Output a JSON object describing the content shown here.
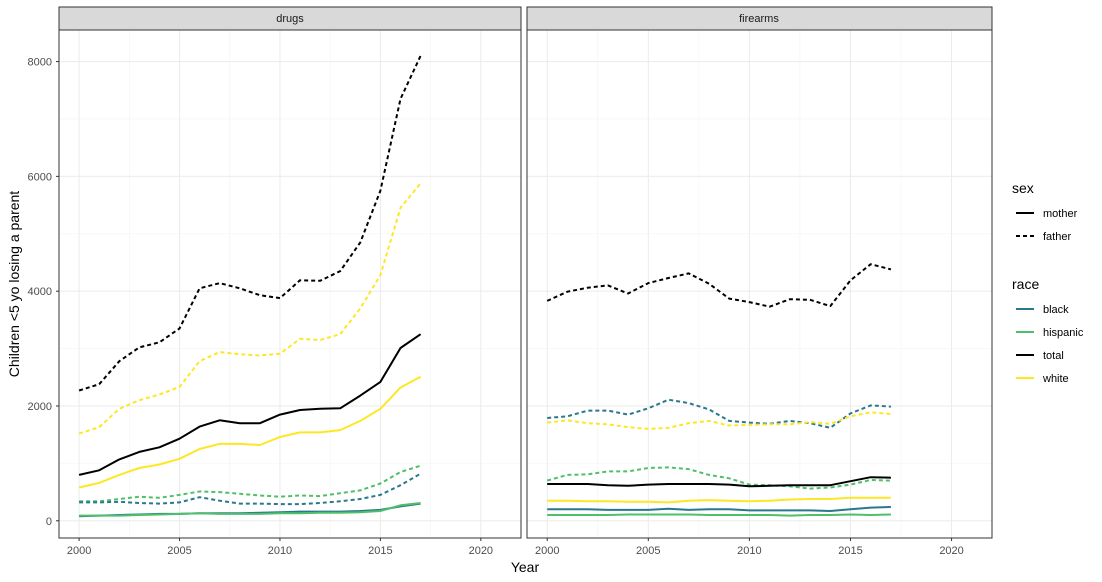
{
  "chart_data": {
    "type": "line",
    "facets": [
      "drugs",
      "firearms"
    ],
    "xlabel": "Year",
    "ylabel": "Children <5 yo losing a parent",
    "xlim": [
      1999,
      2022
    ],
    "ylim": [
      -300,
      8550
    ],
    "x_ticks": [
      2000,
      2005,
      2010,
      2015,
      2020
    ],
    "y_ticks": [
      0,
      2000,
      4000,
      6000,
      8000
    ],
    "grid": true,
    "legend": {
      "position": "right",
      "sex": {
        "title": "sex",
        "items": [
          "mother",
          "father"
        ]
      },
      "race": {
        "title": "race",
        "items": [
          "black",
          "hispanic",
          "total",
          "white"
        ]
      }
    },
    "colors": {
      "black": "#2a788e",
      "hispanic": "#4fbf6a",
      "total": "#000000",
      "white": "#fde725"
    },
    "x": [
      2000,
      2001,
      2002,
      2003,
      2004,
      2005,
      2006,
      2007,
      2008,
      2009,
      2010,
      2011,
      2012,
      2013,
      2014,
      2015,
      2016,
      2017
    ],
    "series": [
      {
        "facet": "drugs",
        "race": "total",
        "sex": "father",
        "values": [
          2270,
          2380,
          2780,
          3020,
          3110,
          3350,
          4050,
          4140,
          4050,
          3930,
          3880,
          4190,
          4180,
          4350,
          4850,
          5750,
          7350,
          8100
        ]
      },
      {
        "facet": "drugs",
        "race": "white",
        "sex": "father",
        "values": [
          1520,
          1630,
          1950,
          2100,
          2200,
          2330,
          2780,
          2940,
          2900,
          2880,
          2910,
          3170,
          3150,
          3250,
          3700,
          4280,
          5450,
          5880
        ]
      },
      {
        "facet": "drugs",
        "race": "total",
        "sex": "mother",
        "values": [
          800,
          880,
          1070,
          1200,
          1280,
          1430,
          1640,
          1750,
          1700,
          1700,
          1850,
          1930,
          1950,
          1960,
          2180,
          2420,
          3010,
          3250
        ]
      },
      {
        "facet": "drugs",
        "race": "white",
        "sex": "mother",
        "values": [
          580,
          660,
          800,
          920,
          980,
          1080,
          1250,
          1340,
          1340,
          1320,
          1460,
          1540,
          1540,
          1580,
          1740,
          1950,
          2320,
          2510
        ]
      },
      {
        "facet": "drugs",
        "race": "hispanic",
        "sex": "father",
        "values": [
          340,
          340,
          380,
          420,
          400,
          450,
          510,
          500,
          470,
          440,
          420,
          440,
          430,
          480,
          530,
          650,
          850,
          960
        ]
      },
      {
        "facet": "drugs",
        "race": "black",
        "sex": "father",
        "values": [
          320,
          320,
          330,
          310,
          300,
          320,
          410,
          350,
          300,
          300,
          290,
          290,
          310,
          340,
          380,
          450,
          620,
          820
        ]
      },
      {
        "facet": "drugs",
        "race": "black",
        "sex": "mother",
        "values": [
          80,
          90,
          100,
          110,
          120,
          120,
          130,
          130,
          130,
          140,
          150,
          160,
          160,
          160,
          170,
          190,
          250,
          300
        ]
      },
      {
        "facet": "drugs",
        "race": "hispanic",
        "sex": "mother",
        "values": [
          90,
          90,
          90,
          100,
          110,
          120,
          130,
          120,
          120,
          120,
          130,
          130,
          140,
          140,
          150,
          170,
          270,
          310
        ]
      },
      {
        "facet": "firearms",
        "race": "total",
        "sex": "father",
        "values": [
          3830,
          3990,
          4060,
          4100,
          3960,
          4140,
          4230,
          4310,
          4130,
          3870,
          3810,
          3730,
          3860,
          3850,
          3740,
          4190,
          4470,
          4380
        ]
      },
      {
        "facet": "firearms",
        "race": "black",
        "sex": "father",
        "values": [
          1790,
          1820,
          1920,
          1920,
          1850,
          1960,
          2110,
          2050,
          1940,
          1740,
          1710,
          1690,
          1740,
          1700,
          1620,
          1870,
          2010,
          1990
        ]
      },
      {
        "facet": "firearms",
        "race": "white",
        "sex": "father",
        "values": [
          1710,
          1750,
          1700,
          1680,
          1630,
          1600,
          1620,
          1700,
          1740,
          1660,
          1670,
          1680,
          1680,
          1720,
          1690,
          1820,
          1890,
          1860
        ]
      },
      {
        "facet": "firearms",
        "race": "hispanic",
        "sex": "father",
        "values": [
          700,
          800,
          810,
          860,
          860,
          920,
          930,
          900,
          800,
          740,
          630,
          620,
          600,
          560,
          580,
          630,
          710,
          700
        ]
      },
      {
        "facet": "firearms",
        "race": "total",
        "sex": "mother",
        "values": [
          640,
          640,
          640,
          620,
          610,
          630,
          640,
          640,
          640,
          630,
          600,
          610,
          620,
          620,
          620,
          690,
          760,
          750
        ]
      },
      {
        "facet": "firearms",
        "race": "white",
        "sex": "mother",
        "values": [
          350,
          350,
          340,
          340,
          330,
          330,
          320,
          350,
          360,
          350,
          340,
          350,
          370,
          380,
          380,
          400,
          400,
          400
        ]
      },
      {
        "facet": "firearms",
        "race": "black",
        "sex": "mother",
        "values": [
          200,
          200,
          200,
          190,
          190,
          190,
          210,
          190,
          200,
          200,
          180,
          180,
          180,
          180,
          170,
          200,
          230,
          240
        ]
      },
      {
        "facet": "firearms",
        "race": "hispanic",
        "sex": "mother",
        "values": [
          100,
          100,
          100,
          100,
          110,
          110,
          110,
          110,
          100,
          100,
          100,
          100,
          90,
          100,
          100,
          110,
          100,
          110
        ]
      }
    ]
  }
}
